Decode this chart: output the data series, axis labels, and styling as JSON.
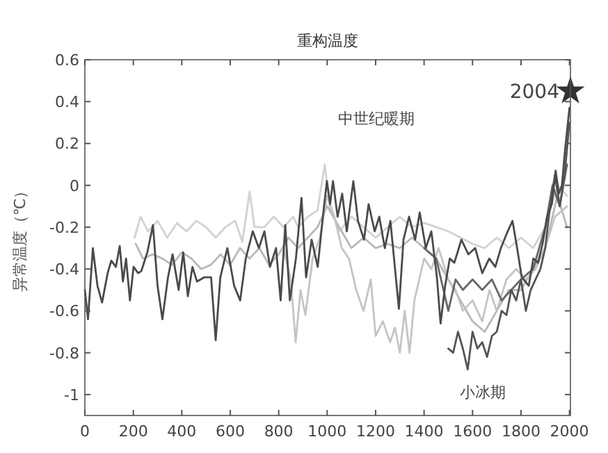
{
  "chart_data": {
    "type": "line",
    "title": "重构温度",
    "ylabel": "异常温度（℃）",
    "xlim": [
      0,
      2004
    ],
    "xticks": [
      0,
      200,
      400,
      600,
      800,
      1000,
      1200,
      1400,
      1600,
      1800,
      2000
    ],
    "ylim": [
      -1.1,
      0.6
    ],
    "yticks": [
      -1,
      -0.8,
      -0.6,
      -0.4,
      -0.2,
      0,
      0.2,
      0.4,
      0.6
    ],
    "grid": false,
    "line_style": "solid",
    "annotations": [
      "中世纪暖期",
      "小冰期",
      {
        "text": "2004",
        "x": 2004,
        "y": 0.45
      }
    ],
    "series": [
      {
        "color": "#d2d2d2",
        "x": [
          205,
          230,
          260,
          300,
          340,
          380,
          420,
          460,
          500,
          540,
          580,
          620,
          650,
          680,
          700,
          740,
          780,
          820,
          860,
          880,
          920,
          960,
          990,
          1010,
          1050,
          1100,
          1150,
          1200,
          1250,
          1300,
          1350,
          1400,
          1450,
          1500,
          1550,
          1600,
          1650,
          1700,
          1750,
          1800,
          1850,
          1900,
          1950,
          1990
        ],
        "values": [
          -0.25,
          -0.15,
          -0.22,
          -0.17,
          -0.25,
          -0.18,
          -0.22,
          -0.17,
          -0.2,
          -0.25,
          -0.2,
          -0.17,
          -0.27,
          -0.03,
          -0.2,
          -0.2,
          -0.15,
          -0.2,
          -0.15,
          -0.2,
          -0.15,
          -0.12,
          0.1,
          -0.1,
          -0.22,
          -0.15,
          -0.2,
          -0.25,
          -0.2,
          -0.15,
          -0.2,
          -0.18,
          -0.2,
          -0.22,
          -0.25,
          -0.28,
          -0.3,
          -0.25,
          -0.3,
          -0.25,
          -0.3,
          -0.2,
          0,
          -0.05
        ]
      },
      {
        "color": "#b8b8b8",
        "x": [
          210,
          240,
          280,
          320,
          360,
          400,
          440,
          480,
          520,
          560,
          600,
          640,
          680,
          720,
          760,
          800,
          840,
          880,
          920,
          960,
          1000,
          1050,
          1100,
          1150,
          1200,
          1250,
          1300,
          1350,
          1400,
          1450,
          1500,
          1550,
          1600,
          1650,
          1700,
          1750,
          1800,
          1850,
          1900,
          1950,
          1990
        ],
        "values": [
          -0.28,
          -0.35,
          -0.33,
          -0.35,
          -0.38,
          -0.32,
          -0.35,
          -0.4,
          -0.38,
          -0.33,
          -0.38,
          -0.3,
          -0.35,
          -0.3,
          -0.38,
          -0.33,
          -0.25,
          -0.3,
          -0.25,
          -0.2,
          -0.1,
          -0.2,
          -0.3,
          -0.25,
          -0.3,
          -0.28,
          -0.3,
          -0.25,
          -0.3,
          -0.35,
          -0.45,
          -0.55,
          -0.65,
          -0.7,
          -0.6,
          -0.5,
          -0.5,
          -0.4,
          -0.3,
          -0.05,
          -0.2
        ]
      },
      {
        "color": "#c4c4c4",
        "x": [
          820,
          850,
          870,
          890,
          910,
          940,
          970,
          1000,
          1030,
          1060,
          1090,
          1120,
          1150,
          1180,
          1200,
          1230,
          1260,
          1280,
          1300,
          1320,
          1340,
          1360,
          1380,
          1400,
          1430,
          1460,
          1500,
          1530,
          1560,
          1600,
          1640,
          1670,
          1700,
          1740,
          1780,
          1820,
          1860,
          1900,
          1940,
          1990
        ],
        "values": [
          -0.3,
          -0.45,
          -0.75,
          -0.5,
          -0.62,
          -0.35,
          -0.25,
          -0.05,
          -0.15,
          -0.3,
          -0.35,
          -0.5,
          -0.6,
          -0.45,
          -0.72,
          -0.65,
          -0.75,
          -0.68,
          -0.8,
          -0.6,
          -0.8,
          -0.55,
          -0.45,
          -0.35,
          -0.4,
          -0.3,
          -0.45,
          -0.5,
          -0.6,
          -0.55,
          -0.65,
          -0.5,
          -0.6,
          -0.45,
          -0.4,
          -0.45,
          -0.4,
          -0.3,
          -0.15,
          -0.1
        ]
      },
      {
        "color": "#666666",
        "x": [
          1400,
          1450,
          1480,
          1500,
          1530,
          1560,
          1600,
          1640,
          1680,
          1720,
          1760,
          1800,
          1850,
          1900,
          1930,
          1960,
          1990
        ],
        "values": [
          -0.3,
          -0.35,
          -0.5,
          -0.6,
          -0.45,
          -0.5,
          -0.45,
          -0.5,
          -0.45,
          -0.55,
          -0.5,
          -0.45,
          -0.4,
          -0.2,
          0,
          -0.1,
          0.1
        ]
      },
      {
        "color": "#555555",
        "x": [
          1500,
          1520,
          1540,
          1560,
          1580,
          1600,
          1620,
          1640,
          1660,
          1680,
          1700,
          1720,
          1740,
          1760,
          1780,
          1800,
          1820,
          1840,
          1860,
          1880,
          1900,
          1920,
          1940,
          1960,
          1980,
          2000
        ],
        "values": [
          -0.78,
          -0.8,
          -0.7,
          -0.78,
          -0.88,
          -0.7,
          -0.78,
          -0.75,
          -0.82,
          -0.72,
          -0.7,
          -0.6,
          -0.62,
          -0.5,
          -0.55,
          -0.45,
          -0.6,
          -0.5,
          -0.45,
          -0.4,
          -0.3,
          -0.1,
          0.05,
          -0.1,
          0.05,
          0.3
        ]
      },
      {
        "color": "#4a4a4a",
        "x": [
          0,
          13,
          33,
          52,
          71,
          94,
          109,
          128,
          144,
          157,
          170,
          186,
          201,
          220,
          233,
          258,
          281,
          300,
          320,
          343,
          362,
          387,
          406,
          425,
          444,
          463,
          492,
          521,
          540,
          559,
          588,
          616,
          641,
          664,
          693,
          718,
          741,
          764,
          789,
          808,
          827,
          846,
          871,
          894,
          913,
          936,
          961,
          986,
          999,
          1012,
          1024,
          1043,
          1062,
          1081,
          1108,
          1127,
          1152,
          1171,
          1196,
          1215,
          1238,
          1261,
          1276,
          1296,
          1315,
          1338,
          1363,
          1382,
          1407,
          1430,
          1453,
          1468,
          1487,
          1506,
          1525,
          1554,
          1583,
          1611,
          1640,
          1669,
          1694,
          1717,
          1745,
          1765,
          1784,
          1803,
          1832,
          1851,
          1870,
          1889,
          1908,
          1927,
          1943,
          1956,
          1969,
          1981,
          2000
        ],
        "values": [
          -0.5,
          -0.64,
          -0.3,
          -0.48,
          -0.56,
          -0.42,
          -0.36,
          -0.39,
          -0.29,
          -0.46,
          -0.35,
          -0.55,
          -0.39,
          -0.42,
          -0.41,
          -0.32,
          -0.19,
          -0.48,
          -0.64,
          -0.44,
          -0.33,
          -0.5,
          -0.32,
          -0.53,
          -0.39,
          -0.46,
          -0.44,
          -0.44,
          -0.74,
          -0.44,
          -0.3,
          -0.48,
          -0.55,
          -0.35,
          -0.22,
          -0.3,
          -0.22,
          -0.39,
          -0.3,
          -0.55,
          -0.19,
          -0.55,
          -0.35,
          -0.06,
          -0.44,
          -0.26,
          -0.39,
          -0.11,
          0.02,
          -0.09,
          0.02,
          -0.15,
          -0.04,
          -0.22,
          0.02,
          -0.17,
          -0.26,
          -0.09,
          -0.22,
          -0.15,
          -0.3,
          -0.17,
          -0.35,
          -0.59,
          -0.26,
          -0.15,
          -0.26,
          -0.13,
          -0.3,
          -0.22,
          -0.44,
          -0.66,
          -0.48,
          -0.35,
          -0.37,
          -0.26,
          -0.33,
          -0.3,
          -0.42,
          -0.35,
          -0.39,
          -0.3,
          -0.22,
          -0.17,
          -0.3,
          -0.44,
          -0.48,
          -0.35,
          -0.37,
          -0.28,
          -0.15,
          -0.09,
          0.07,
          -0.04,
          0,
          0.16,
          0.37
        ]
      },
      {
        "type": "scatter",
        "marker": "star",
        "color": "#333333",
        "x": [
          2004
        ],
        "values": [
          0.45
        ]
      }
    ]
  }
}
